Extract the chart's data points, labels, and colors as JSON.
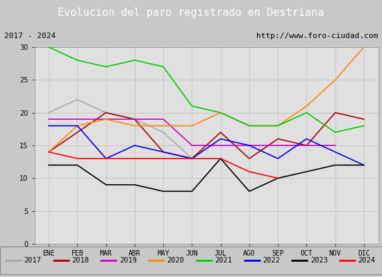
{
  "title": "Evolucion del paro registrado en Destriana",
  "subtitle_left": "2017 - 2024",
  "subtitle_right": "http://www.foro-ciudad.com",
  "months": [
    "ENE",
    "FEB",
    "MAR",
    "ABR",
    "MAY",
    "JUN",
    "JUL",
    "AGO",
    "SEP",
    "OCT",
    "NOV",
    "DIC"
  ],
  "series": {
    "2017": {
      "color": "#aaaaaa",
      "data": [
        20,
        22,
        20,
        19,
        17,
        13,
        null,
        null,
        null,
        null,
        null,
        null
      ]
    },
    "2018": {
      "color": "#aa0000",
      "data": [
        14,
        17,
        20,
        19,
        14,
        13,
        17,
        13,
        16,
        15,
        20,
        19
      ]
    },
    "2019": {
      "color": "#cc00cc",
      "data": [
        19,
        19,
        19,
        19,
        19,
        15,
        15,
        15,
        15,
        15,
        15,
        null
      ]
    },
    "2020": {
      "color": "#ff8800",
      "data": [
        14,
        18,
        19,
        18,
        18,
        18,
        20,
        18,
        18,
        21,
        25,
        30
      ]
    },
    "2021": {
      "color": "#00cc00",
      "data": [
        30,
        28,
        27,
        28,
        27,
        21,
        20,
        18,
        18,
        20,
        17,
        18
      ]
    },
    "2022": {
      "color": "#0000ee",
      "data": [
        18,
        18,
        13,
        15,
        14,
        13,
        16,
        15,
        13,
        16,
        14,
        12
      ]
    },
    "2023": {
      "color": "#000000",
      "data": [
        12,
        12,
        9,
        9,
        8,
        8,
        13,
        8,
        10,
        11,
        12,
        12
      ]
    },
    "2024": {
      "color": "#ff0000",
      "data": [
        14,
        13,
        13,
        13,
        13,
        13,
        13,
        11,
        10,
        null,
        null,
        null
      ]
    }
  },
  "ylim": [
    0,
    30
  ],
  "yticks": [
    0,
    5,
    10,
    15,
    20,
    25,
    30
  ],
  "fig_bg_color": "#c8c8c8",
  "plot_bg_color": "#e0e0e0",
  "title_bg_color": "#4477bb",
  "title_text_color": "#ffffff",
  "subtitle_bg_color": "#d0d0d0",
  "legend_bg_color": "#d8d8d8",
  "grid_color": "#bbbbbb",
  "title_fontsize": 11,
  "subtitle_fontsize": 8,
  "tick_fontsize": 7,
  "legend_fontsize": 7.5
}
